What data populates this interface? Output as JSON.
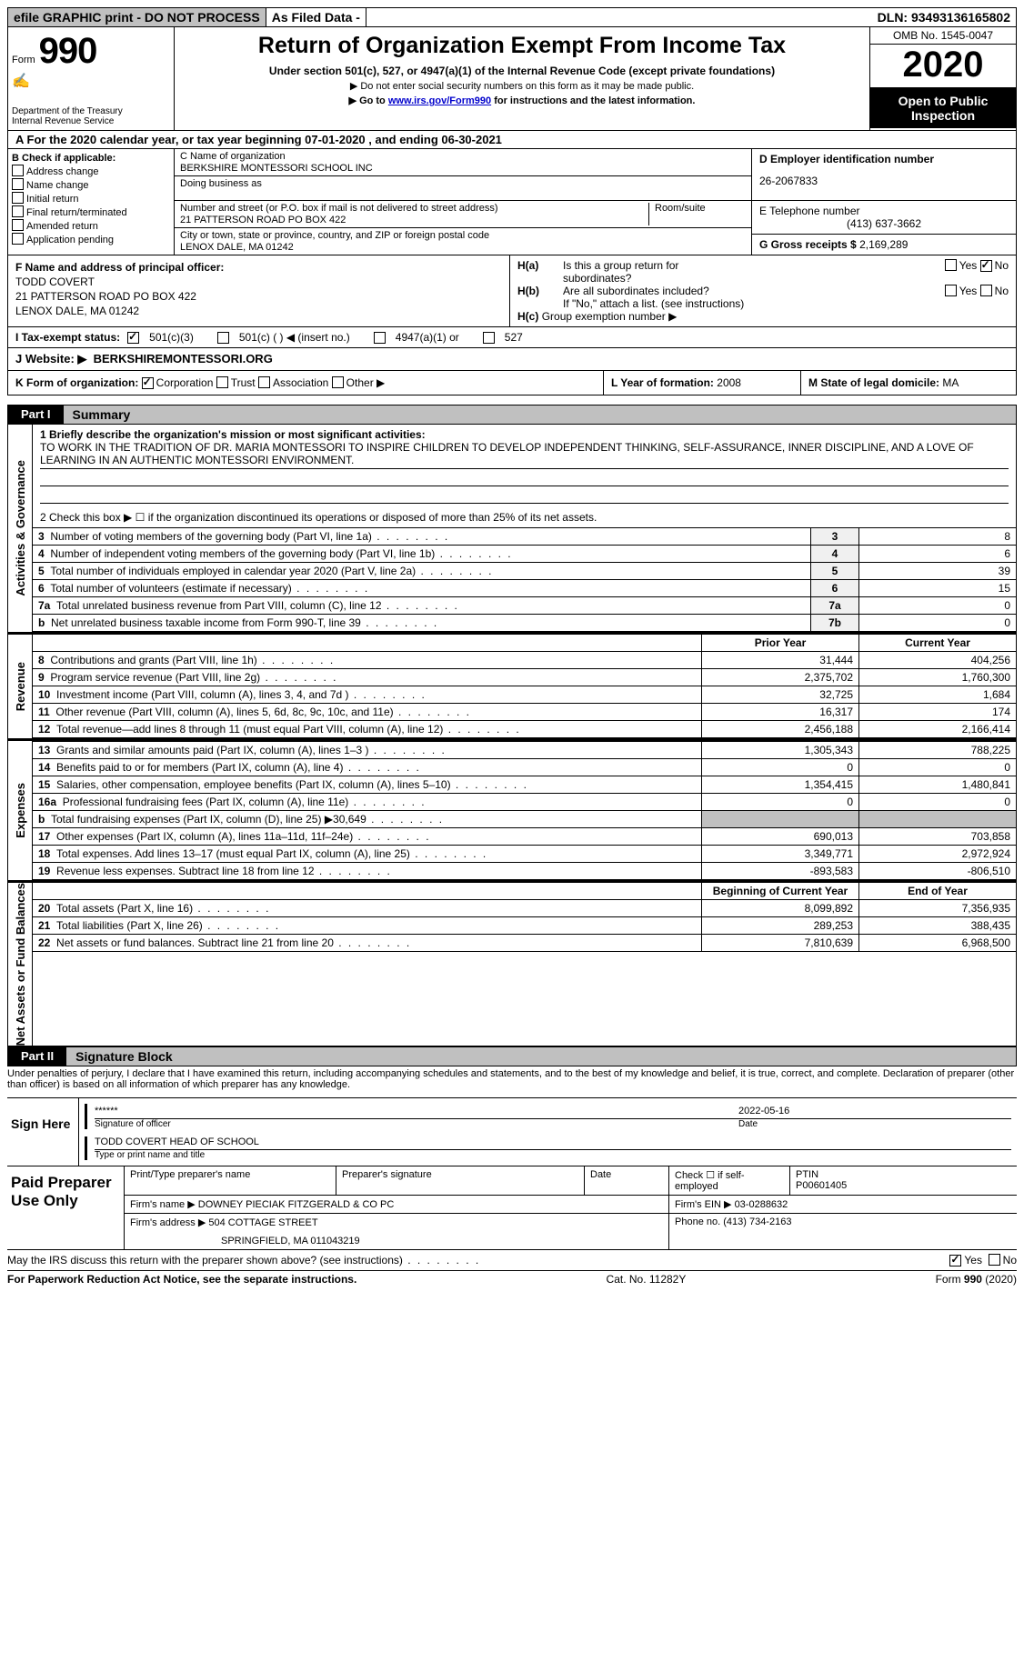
{
  "topbar": {
    "efile": "efile GRAPHIC print - DO NOT PROCESS",
    "asfiled": "As Filed Data -",
    "dln": "DLN: 93493136165802"
  },
  "header": {
    "form_prefix": "Form",
    "form_num": "990",
    "dept": "Department of the Treasury\nInternal Revenue Service",
    "title": "Return of Organization Exempt From Income Tax",
    "subtitle": "Under section 501(c), 527, or 4947(a)(1) of the Internal Revenue Code (except private foundations)",
    "hint1": "Do not enter social security numbers on this form as it may be made public.",
    "hint2_pre": "Go to ",
    "hint2_link": "www.irs.gov/Form990",
    "hint2_post": " for instructions and the latest information.",
    "omb": "OMB No. 1545-0047",
    "year": "2020",
    "open": "Open to Public Inspection"
  },
  "rowA": "A   For the 2020 calendar year, or tax year beginning 07-01-2020   , and ending 06-30-2021",
  "boxB": {
    "title": "B Check if applicable:",
    "opts": [
      "Address change",
      "Name change",
      "Initial return",
      "Final return/terminated",
      "Amended return",
      "Application pending"
    ]
  },
  "boxC": {
    "name_lbl": "C Name of organization",
    "name": "BERKSHIRE MONTESSORI SCHOOL INC",
    "dba_lbl": "Doing business as",
    "dba": "",
    "addr_lbl": "Number and street (or P.O. box if mail is not delivered to street address)",
    "room_lbl": "Room/suite",
    "addr": "21 PATTERSON ROAD PO BOX 422",
    "city_lbl": "City or town, state or province, country, and ZIP or foreign postal code",
    "city": "LENOX DALE, MA  01242"
  },
  "boxD": {
    "ein_lbl": "D Employer identification number",
    "ein": "26-2067833",
    "tel_lbl": "E Telephone number",
    "tel": "(413) 637-3662",
    "gross_lbl": "G Gross receipts $",
    "gross": "2,169,289"
  },
  "boxF": {
    "lbl": "F  Name and address of principal officer:",
    "name": "TODD COVERT",
    "addr1": "21 PATTERSON ROAD PO BOX 422",
    "addr2": "LENOX DALE, MA  01242"
  },
  "boxH": {
    "a": "Is this a group return for",
    "a2": "subordinates?",
    "b": "Are all subordinates included?",
    "note": "If \"No,\" attach a list. (see instructions)",
    "c": "Group exemption number ▶"
  },
  "taxI": {
    "lbl": "I   Tax-exempt status:",
    "o1": "501(c)(3)",
    "o2": "501(c) (   ) ◀ (insert no.)",
    "o3": "4947(a)(1) or",
    "o4": "527"
  },
  "website": {
    "lbl": "J   Website: ▶",
    "val": "BERKSHIREMONTESSORI.ORG"
  },
  "formK": {
    "lbl": "K Form of organization:",
    "opts": [
      "Corporation",
      "Trust",
      "Association",
      "Other ▶"
    ]
  },
  "boxL": {
    "lbl": "L Year of formation:",
    "val": "2008"
  },
  "boxM": {
    "lbl": "M State of legal domicile:",
    "val": "MA"
  },
  "part1": {
    "label": "Part I",
    "title": "Summary"
  },
  "mission": {
    "q": "1 Briefly describe the organization's mission or most significant activities:",
    "text": "TO WORK IN THE TRADITION OF DR. MARIA MONTESSORI TO INSPIRE CHILDREN TO DEVELOP INDEPENDENT THINKING, SELF-ASSURANCE, INNER DISCIPLINE, AND A LOVE OF LEARNING IN AN AUTHENTIC MONTESSORI ENVIRONMENT."
  },
  "line2": "2   Check this box ▶ ☐ if the organization discontinued its operations or disposed of more than 25% of its net assets.",
  "gov_lines": [
    {
      "n": "3",
      "d": "Number of voting members of the governing body (Part VI, line 1a)",
      "k": "3",
      "v": "8"
    },
    {
      "n": "4",
      "d": "Number of independent voting members of the governing body (Part VI, line 1b)",
      "k": "4",
      "v": "6"
    },
    {
      "n": "5",
      "d": "Total number of individuals employed in calendar year 2020 (Part V, line 2a)",
      "k": "5",
      "v": "39"
    },
    {
      "n": "6",
      "d": "Total number of volunteers (estimate if necessary)",
      "k": "6",
      "v": "15"
    },
    {
      "n": "7a",
      "d": "Total unrelated business revenue from Part VIII, column (C), line 12",
      "k": "7a",
      "v": "0"
    },
    {
      "n": "b",
      "d": "Net unrelated business taxable income from Form 990-T, line 39",
      "k": "7b",
      "v": "0"
    }
  ],
  "col_hdrs": {
    "py": "Prior Year",
    "cy": "Current Year"
  },
  "rev_lines": [
    {
      "n": "8",
      "d": "Contributions and grants (Part VIII, line 1h)",
      "py": "31,444",
      "cy": "404,256"
    },
    {
      "n": "9",
      "d": "Program service revenue (Part VIII, line 2g)",
      "py": "2,375,702",
      "cy": "1,760,300"
    },
    {
      "n": "10",
      "d": "Investment income (Part VIII, column (A), lines 3, 4, and 7d )",
      "py": "32,725",
      "cy": "1,684"
    },
    {
      "n": "11",
      "d": "Other revenue (Part VIII, column (A), lines 5, 6d, 8c, 9c, 10c, and 11e)",
      "py": "16,317",
      "cy": "174"
    },
    {
      "n": "12",
      "d": "Total revenue—add lines 8 through 11 (must equal Part VIII, column (A), line 12)",
      "py": "2,456,188",
      "cy": "2,166,414"
    }
  ],
  "exp_lines": [
    {
      "n": "13",
      "d": "Grants and similar amounts paid (Part IX, column (A), lines 1–3 )",
      "py": "1,305,343",
      "cy": "788,225"
    },
    {
      "n": "14",
      "d": "Benefits paid to or for members (Part IX, column (A), line 4)",
      "py": "0",
      "cy": "0"
    },
    {
      "n": "15",
      "d": "Salaries, other compensation, employee benefits (Part IX, column (A), lines 5–10)",
      "py": "1,354,415",
      "cy": "1,480,841"
    },
    {
      "n": "16a",
      "d": "Professional fundraising fees (Part IX, column (A), line 11e)",
      "py": "0",
      "cy": "0"
    },
    {
      "n": "b",
      "d": "Total fundraising expenses (Part IX, column (D), line 25) ▶30,649",
      "py": "",
      "cy": ""
    },
    {
      "n": "17",
      "d": "Other expenses (Part IX, column (A), lines 11a–11d, 11f–24e)",
      "py": "690,013",
      "cy": "703,858"
    },
    {
      "n": "18",
      "d": "Total expenses. Add lines 13–17 (must equal Part IX, column (A), line 25)",
      "py": "3,349,771",
      "cy": "2,972,924"
    },
    {
      "n": "19",
      "d": "Revenue less expenses. Subtract line 18 from line 12",
      "py": "-893,583",
      "cy": "-806,510"
    }
  ],
  "net_hdrs": {
    "b": "Beginning of Current Year",
    "e": "End of Year"
  },
  "net_lines": [
    {
      "n": "20",
      "d": "Total assets (Part X, line 16)",
      "py": "8,099,892",
      "cy": "7,356,935"
    },
    {
      "n": "21",
      "d": "Total liabilities (Part X, line 26)",
      "py": "289,253",
      "cy": "388,435"
    },
    {
      "n": "22",
      "d": "Net assets or fund balances. Subtract line 21 from line 20",
      "py": "7,810,639",
      "cy": "6,968,500"
    }
  ],
  "vlabels": {
    "gov": "Activities & Governance",
    "rev": "Revenue",
    "exp": "Expenses",
    "net": "Net Assets or Fund Balances"
  },
  "part2": {
    "label": "Part II",
    "title": "Signature Block"
  },
  "sig_text": "Under penalties of perjury, I declare that I have examined this return, including accompanying schedules and statements, and to the best of my knowledge and belief, it is true, correct, and complete. Declaration of preparer (other than officer) is based on all information of which preparer has any knowledge.",
  "sign": {
    "label": "Sign Here",
    "stars": "******",
    "sig_lbl": "Signature of officer",
    "date": "2022-05-16",
    "date_lbl": "Date",
    "name": "TODD COVERT HEAD OF SCHOOL",
    "name_lbl": "Type or print name and title"
  },
  "prep": {
    "label": "Paid Preparer Use Only",
    "h1": "Print/Type preparer's name",
    "h2": "Preparer's signature",
    "h3": "Date",
    "h4_a": "Check ☐ if self-employed",
    "h4_b": "PTIN",
    "ptin": "P00601405",
    "firm_lbl": "Firm's name   ▶",
    "firm": "DOWNEY PIECIAK FITZGERALD & CO PC",
    "ein_lbl": "Firm's EIN ▶",
    "ein": "03-0288632",
    "addr_lbl": "Firm's address ▶",
    "addr1": "504 COTTAGE STREET",
    "addr2": "SPRINGFIELD, MA  011043219",
    "phone_lbl": "Phone no.",
    "phone": "(413) 734-2163"
  },
  "footerQ": "May the IRS discuss this return with the preparer shown above? (see instructions)",
  "footer": {
    "left": "For Paperwork Reduction Act Notice, see the separate instructions.",
    "mid": "Cat. No. 11282Y",
    "right": "Form 990 (2020)"
  }
}
